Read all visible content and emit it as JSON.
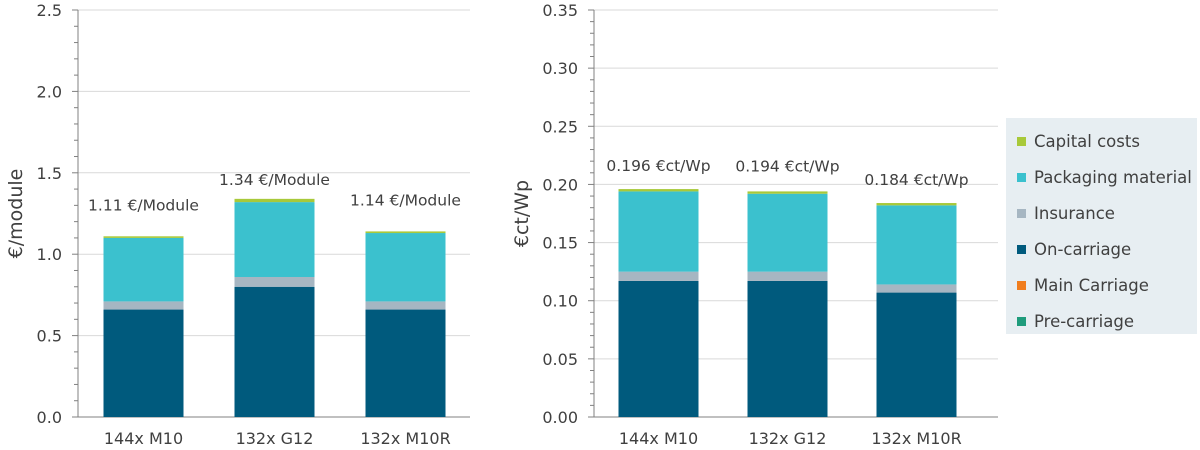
{
  "colors": {
    "capital_costs": "#a8c93a",
    "packaging_material": "#3bc1ce",
    "insurance": "#a6b6c2",
    "on_carriage": "#005a7d",
    "main_carriage": "#f07d1e",
    "pre_carriage": "#1f9c7c"
  },
  "legend": {
    "items": [
      {
        "label": "Capital costs",
        "color": "#a8c93a"
      },
      {
        "label": "Packaging material",
        "color": "#3bc1ce"
      },
      {
        "label": "Insurance",
        "color": "#a6b6c2"
      },
      {
        "label": "On-carriage",
        "color": "#005a7d"
      },
      {
        "label": "Main Carriage",
        "color": "#f07d1e"
      },
      {
        "label": "Pre-carriage",
        "color": "#1f9c7c"
      }
    ]
  },
  "chart_data": [
    {
      "type": "bar",
      "stacked": true,
      "ylabel": "€/module",
      "xlabel": "",
      "ylim": [
        0,
        2.5
      ],
      "yticks": [
        "0.0",
        "0.5",
        "1.0",
        "1.5",
        "2.0",
        "2.5"
      ],
      "grid": true,
      "categories": [
        "144x M10",
        "132x G12",
        "132x M10R"
      ],
      "series": [
        {
          "name": "Pre-carriage",
          "values": [
            0,
            0,
            0
          ]
        },
        {
          "name": "Main Carriage",
          "values": [
            0,
            0,
            0
          ]
        },
        {
          "name": "On-carriage",
          "values": [
            0.66,
            0.8,
            0.66
          ]
        },
        {
          "name": "Insurance",
          "values": [
            0.05,
            0.06,
            0.05
          ]
        },
        {
          "name": "Packaging material",
          "values": [
            0.39,
            0.46,
            0.42
          ]
        },
        {
          "name": "Capital costs",
          "values": [
            0.01,
            0.02,
            0.01
          ]
        }
      ],
      "data_labels": [
        "1.11 €/Module",
        "1.34 €/Module",
        "1.14 €/Module"
      ]
    },
    {
      "type": "bar",
      "stacked": true,
      "ylabel": "€ct/Wp",
      "xlabel": "",
      "ylim": [
        0,
        0.35
      ],
      "yticks": [
        "0.00",
        "0.05",
        "0.10",
        "0.15",
        "0.20",
        "0.25",
        "0.30",
        "0.35"
      ],
      "grid": true,
      "categories": [
        "144x M10",
        "132x G12",
        "132x M10R"
      ],
      "series": [
        {
          "name": "Pre-carriage",
          "values": [
            0,
            0,
            0
          ]
        },
        {
          "name": "Main Carriage",
          "values": [
            0,
            0,
            0
          ]
        },
        {
          "name": "On-carriage",
          "values": [
            0.117,
            0.117,
            0.107
          ]
        },
        {
          "name": "Insurance",
          "values": [
            0.008,
            0.008,
            0.007
          ]
        },
        {
          "name": "Packaging material",
          "values": [
            0.069,
            0.067,
            0.068
          ]
        },
        {
          "name": "Capital costs",
          "values": [
            0.002,
            0.002,
            0.002
          ]
        }
      ],
      "data_labels": [
        "0.196 €ct/Wp",
        "0.194 €ct/Wp",
        "0.184 €ct/Wp"
      ]
    }
  ]
}
